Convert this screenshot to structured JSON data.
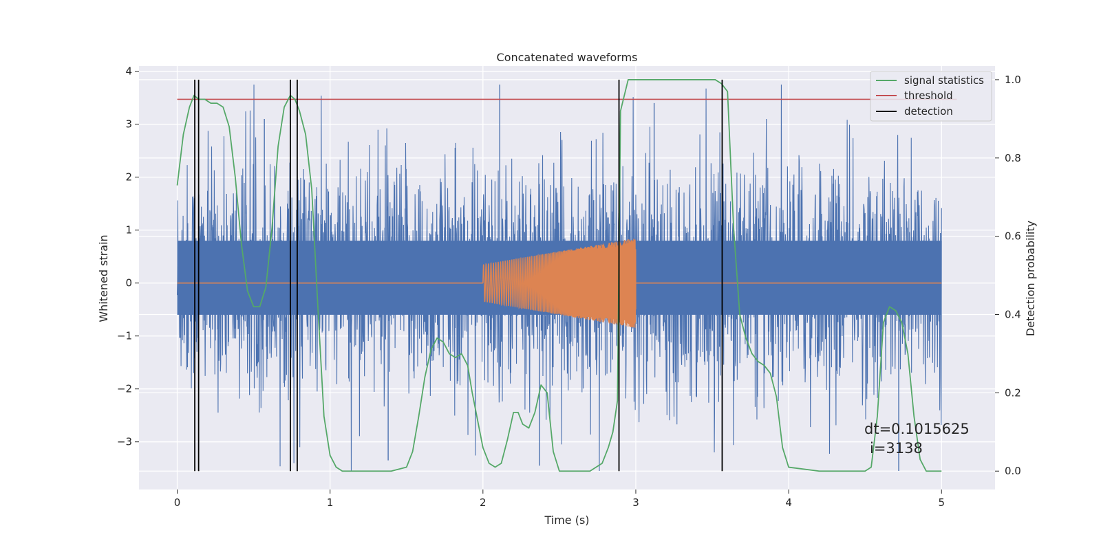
{
  "chart_data": {
    "type": "line",
    "title": "Concatenated waveforms",
    "xlabel": "Time (s)",
    "ylabel": "Whitened strain",
    "ylabel_right": "Detection probability",
    "xlim": [
      -0.25,
      5.35
    ],
    "ylim": [
      -3.9,
      4.1
    ],
    "ylim_right": [
      -0.047,
      1.035
    ],
    "xticks": [
      0,
      1,
      2,
      3,
      4,
      5
    ],
    "xtick_labels": [
      "0",
      "1",
      "2",
      "3",
      "4",
      "5"
    ],
    "yticks": [
      -3,
      -2,
      -1,
      0,
      1,
      2,
      3,
      4
    ],
    "ytick_labels": [
      "−3",
      "−2",
      "−1",
      "0",
      "1",
      "2",
      "3",
      "4"
    ],
    "yticks_right": [
      0.0,
      0.2,
      0.4,
      0.6,
      0.8,
      1.0
    ],
    "ytick_right_labels": [
      "0.0",
      "0.2",
      "0.4",
      "0.6",
      "0.8",
      "1.0"
    ],
    "grid": true,
    "legend_position": "top-right",
    "legend": [
      {
        "label": "signal statistics",
        "color": "#55a868"
      },
      {
        "label": "threshold",
        "color": "#c44e52"
      },
      {
        "label": "detection",
        "color": "#000000"
      }
    ],
    "series": [
      {
        "id": "noise",
        "color": "#4c72b0",
        "x_range": [
          0,
          5
        ],
        "band": [
          -0.6,
          0.8
        ],
        "peak_max": 3.75,
        "peak_min": -3.55
      },
      {
        "id": "injected-signal",
        "color": "#dd8452",
        "baseline": 0,
        "chirp_start": 2.0,
        "chirp_end": 3.0,
        "amplitude_start": 0.35,
        "amplitude_end": 0.85
      },
      {
        "id": "signal-statistics",
        "name": "signal statistics",
        "color": "#55a868",
        "axis": "right",
        "x": [
          0.0,
          0.04,
          0.08,
          0.11,
          0.14,
          0.18,
          0.22,
          0.26,
          0.3,
          0.34,
          0.38,
          0.42,
          0.46,
          0.5,
          0.54,
          0.58,
          0.62,
          0.66,
          0.7,
          0.74,
          0.77,
          0.8,
          0.84,
          0.88,
          0.92,
          0.96,
          1.0,
          1.04,
          1.08,
          1.2,
          1.4,
          1.5,
          1.54,
          1.58,
          1.62,
          1.66,
          1.7,
          1.74,
          1.78,
          1.82,
          1.86,
          1.9,
          1.93,
          1.97,
          2.0,
          2.04,
          2.08,
          2.12,
          2.16,
          2.2,
          2.23,
          2.26,
          2.3,
          2.34,
          2.38,
          2.42,
          2.46,
          2.5,
          2.54,
          2.6,
          2.7,
          2.78,
          2.82,
          2.85,
          2.88,
          2.9,
          2.95,
          3.0,
          3.2,
          3.4,
          3.52,
          3.56,
          3.6,
          3.64,
          3.68,
          3.72,
          3.76,
          3.8,
          3.84,
          3.88,
          3.92,
          3.96,
          4.0,
          4.2,
          4.4,
          4.5,
          4.54,
          4.58,
          4.62,
          4.66,
          4.7,
          4.74,
          4.78,
          4.82,
          4.86,
          4.9,
          4.94,
          5.0
        ],
        "y": [
          0.73,
          0.86,
          0.93,
          0.96,
          0.95,
          0.95,
          0.94,
          0.94,
          0.93,
          0.88,
          0.75,
          0.58,
          0.46,
          0.42,
          0.42,
          0.47,
          0.62,
          0.83,
          0.93,
          0.96,
          0.95,
          0.92,
          0.86,
          0.72,
          0.42,
          0.14,
          0.04,
          0.01,
          0.0,
          0.0,
          0.0,
          0.01,
          0.05,
          0.14,
          0.24,
          0.31,
          0.34,
          0.33,
          0.3,
          0.29,
          0.3,
          0.27,
          0.2,
          0.12,
          0.06,
          0.02,
          0.01,
          0.02,
          0.08,
          0.15,
          0.15,
          0.12,
          0.11,
          0.15,
          0.22,
          0.2,
          0.05,
          0.0,
          0.0,
          0.0,
          0.0,
          0.02,
          0.06,
          0.1,
          0.18,
          0.92,
          1.0,
          1.0,
          1.0,
          1.0,
          1.0,
          0.99,
          0.97,
          0.62,
          0.4,
          0.34,
          0.3,
          0.28,
          0.27,
          0.25,
          0.19,
          0.06,
          0.01,
          0.0,
          0.0,
          0.0,
          0.01,
          0.14,
          0.38,
          0.42,
          0.41,
          0.38,
          0.3,
          0.14,
          0.03,
          0.0,
          0.0,
          0.0
        ]
      },
      {
        "id": "threshold",
        "name": "threshold",
        "color": "#c44e52",
        "axis": "right",
        "x": [
          0,
          5.1
        ],
        "y": [
          0.95,
          0.95
        ]
      }
    ],
    "detections": [
      0.115,
      0.14,
      0.74,
      0.785,
      2.89,
      3.565
    ],
    "annotation": [
      "dt=0.1015625",
      "i=3138"
    ]
  }
}
